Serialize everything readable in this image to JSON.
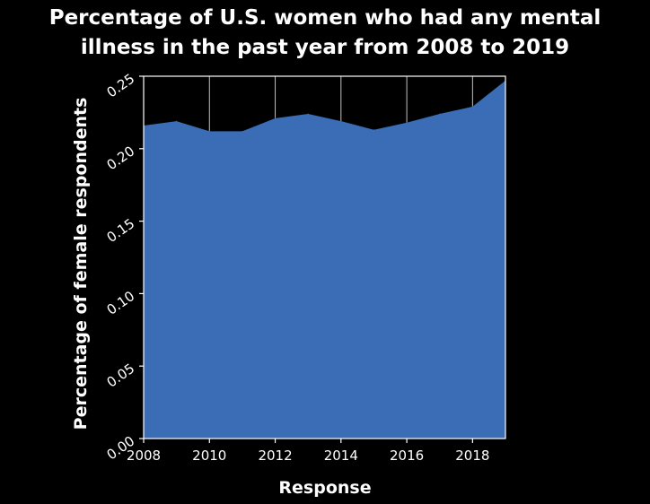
{
  "chart_data": {
    "type": "area",
    "title_lines": [
      "Percentage of U.S. women who had any mental",
      "illness in the past year from 2008 to 2019"
    ],
    "xlabel": "Response",
    "ylabel": "Percentage of female respondents",
    "x": [
      2008,
      2009,
      2010,
      2011,
      2012,
      2013,
      2014,
      2015,
      2016,
      2017,
      2018,
      2019
    ],
    "values": [
      0.216,
      0.219,
      0.212,
      0.212,
      0.221,
      0.224,
      0.219,
      0.213,
      0.218,
      0.224,
      0.229,
      0.247
    ],
    "xlim": [
      2008,
      2019
    ],
    "ylim": [
      0,
      0.25
    ],
    "x_ticks": [
      2008,
      2010,
      2012,
      2014,
      2016,
      2018
    ],
    "x_tick_labels": [
      "2008",
      "2010",
      "2012",
      "2014",
      "2016",
      "2018"
    ],
    "y_ticks": [
      0,
      0.05,
      0.1,
      0.15,
      0.2,
      0.25
    ],
    "y_tick_labels": [
      "0.00",
      "0.05",
      "0.10",
      "0.15",
      "0.20",
      "0.25"
    ],
    "grid": true,
    "colors": {
      "background": "#000000",
      "fill": "#3a6db5",
      "grid": "#c0c0c0",
      "axis": "#ffffff",
      "text": "#ffffff"
    }
  }
}
